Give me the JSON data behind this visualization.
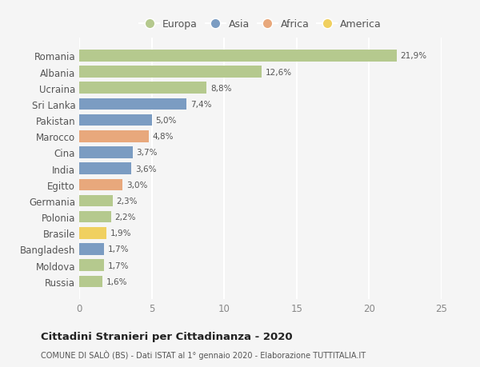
{
  "countries": [
    "Romania",
    "Albania",
    "Ucraina",
    "Sri Lanka",
    "Pakistan",
    "Marocco",
    "Cina",
    "India",
    "Egitto",
    "Germania",
    "Polonia",
    "Brasile",
    "Bangladesh",
    "Moldova",
    "Russia"
  ],
  "values": [
    21.9,
    12.6,
    8.8,
    7.4,
    5.0,
    4.8,
    3.7,
    3.6,
    3.0,
    2.3,
    2.2,
    1.9,
    1.7,
    1.7,
    1.6
  ],
  "labels": [
    "21,9%",
    "12,6%",
    "8,8%",
    "7,4%",
    "5,0%",
    "4,8%",
    "3,7%",
    "3,6%",
    "3,0%",
    "2,3%",
    "2,2%",
    "1,9%",
    "1,7%",
    "1,7%",
    "1,6%"
  ],
  "continents": [
    "Europa",
    "Europa",
    "Europa",
    "Asia",
    "Asia",
    "Africa",
    "Asia",
    "Asia",
    "Africa",
    "Europa",
    "Europa",
    "America",
    "Asia",
    "Europa",
    "Europa"
  ],
  "continent_colors": {
    "Europa": "#b5c98e",
    "Asia": "#7b9cc2",
    "Africa": "#e8a87c",
    "America": "#f0d060"
  },
  "legend_order": [
    "Europa",
    "Asia",
    "Africa",
    "America"
  ],
  "title": "Cittadini Stranieri per Cittadinanza - 2020",
  "subtitle": "COMUNE DI SALÒ (BS) - Dati ISTAT al 1° gennaio 2020 - Elaborazione TUTTITALIA.IT",
  "xlim": [
    0,
    25
  ],
  "xticks": [
    0,
    5,
    10,
    15,
    20,
    25
  ],
  "background_color": "#f5f5f5",
  "grid_color": "#ffffff",
  "bar_height": 0.72
}
